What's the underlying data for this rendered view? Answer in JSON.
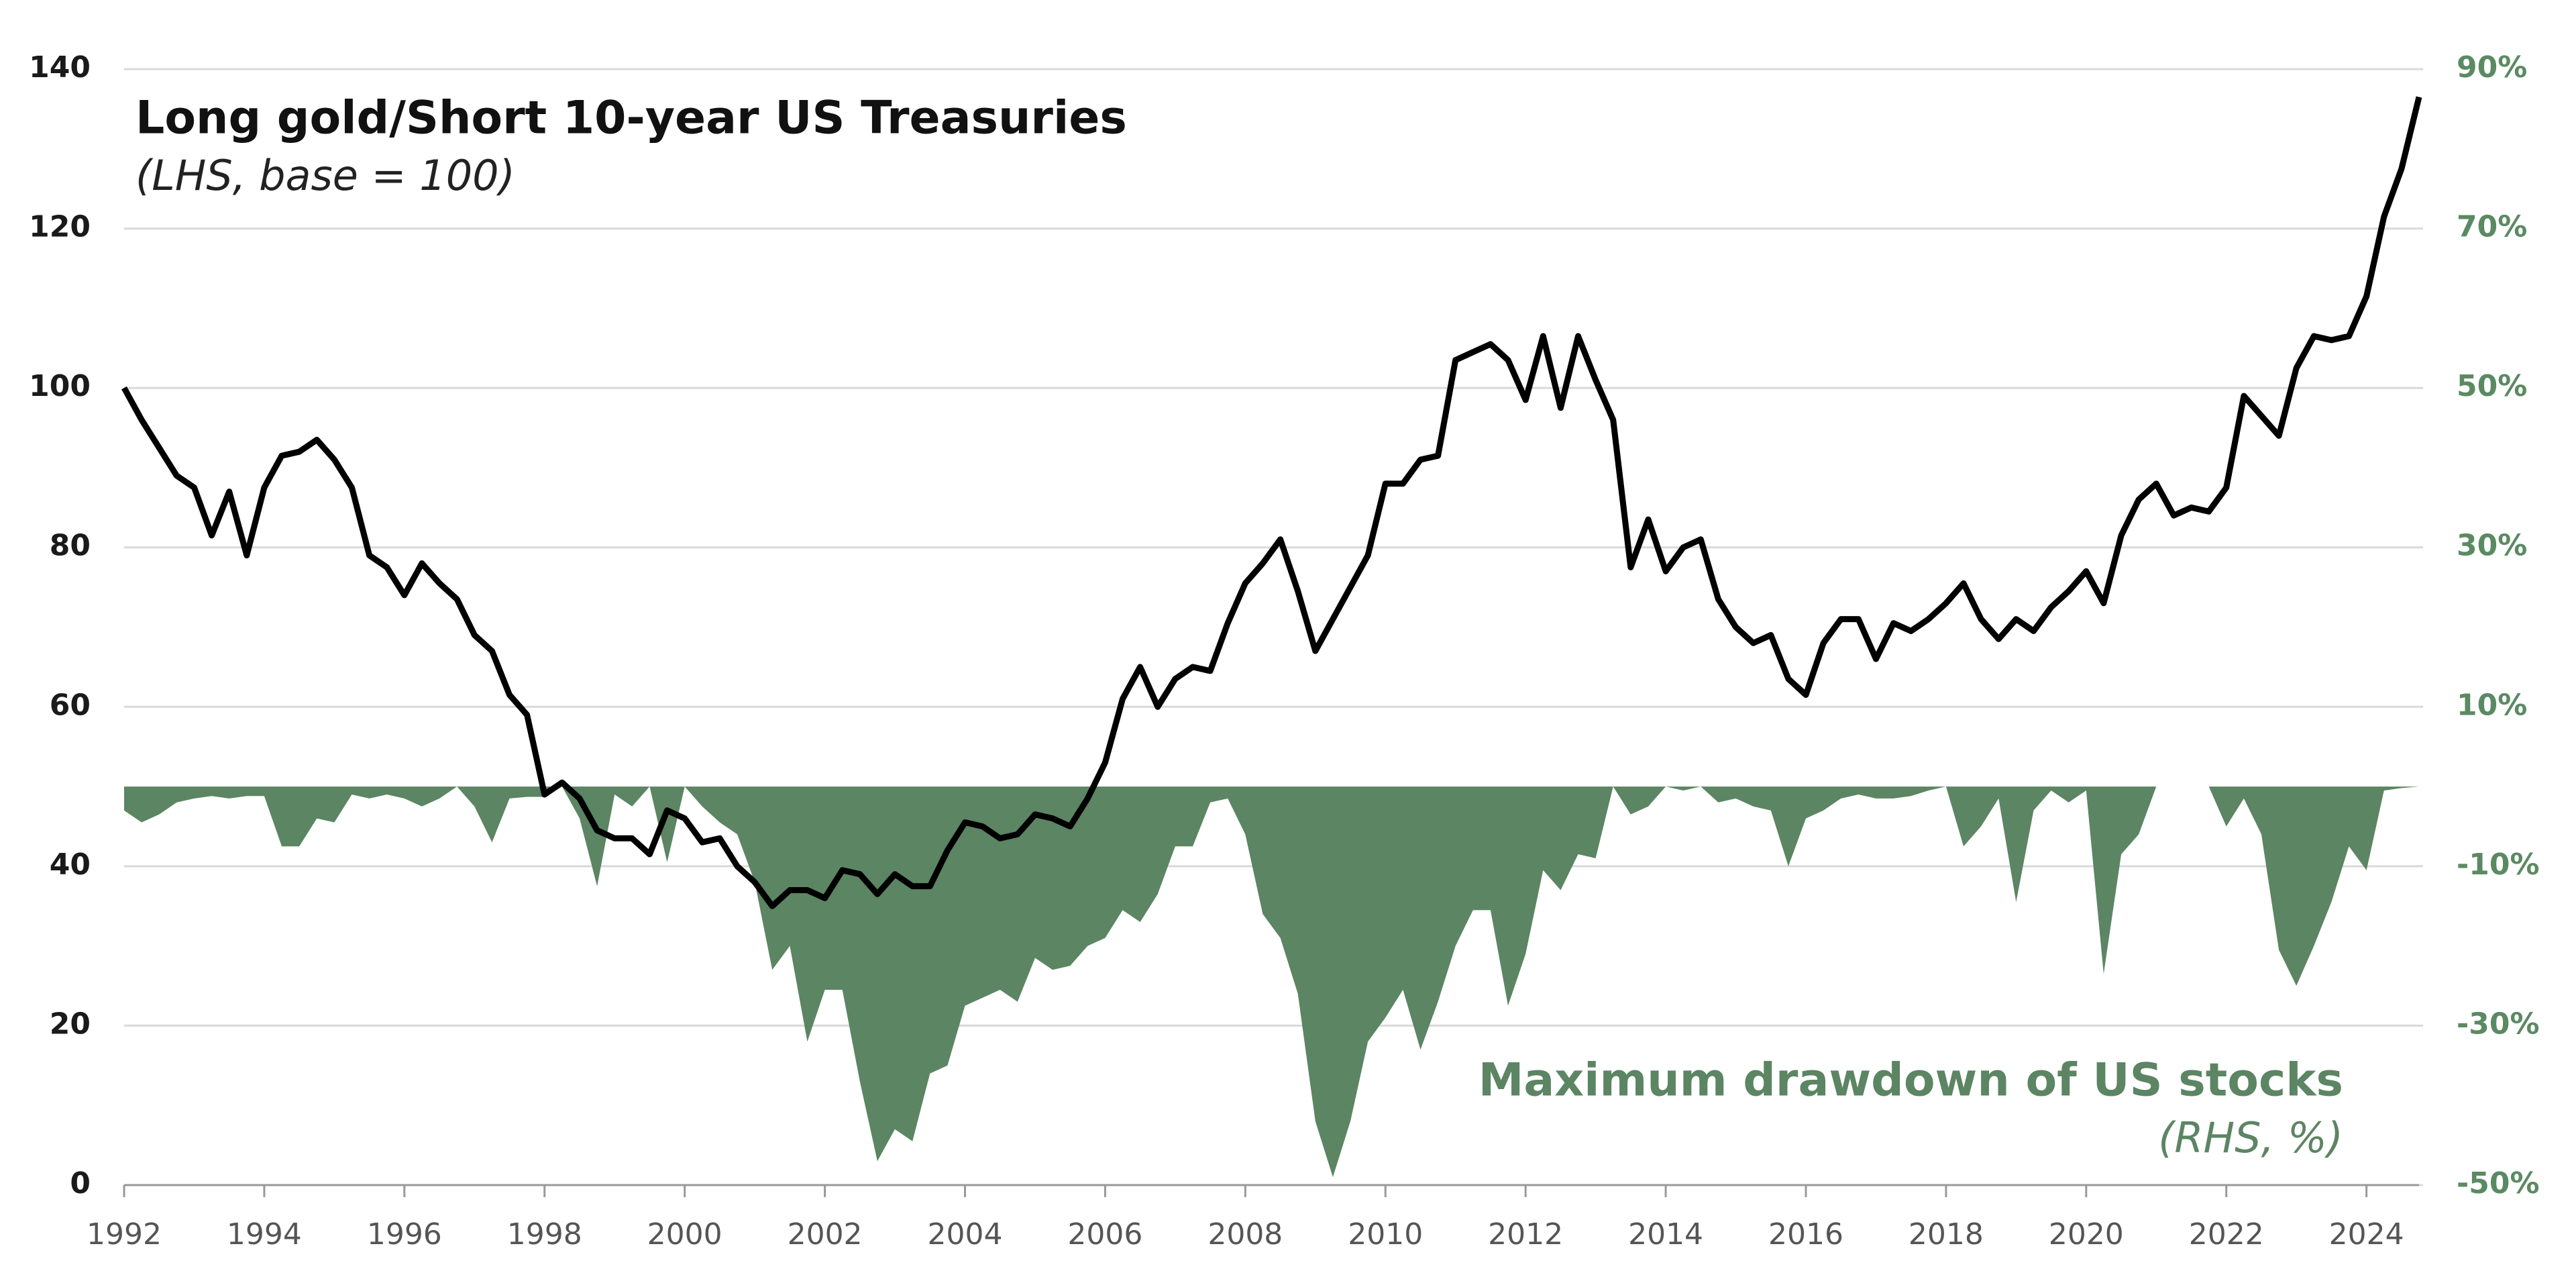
{
  "chart_data": {
    "type": "line-area",
    "title": "Long gold/Short 10-year US Treasuries",
    "subtitle": "(LHS, base = 100)",
    "annotation": "Maximum drawdown of US stocks",
    "annotation_subtitle": "(RHS, %)",
    "x": [
      1992,
      1992.25,
      1992.5,
      1992.75,
      1993,
      1993.25,
      1993.5,
      1993.75,
      1994,
      1994.25,
      1994.5,
      1994.75,
      1995,
      1995.25,
      1995.5,
      1995.75,
      1996,
      1996.25,
      1996.5,
      1996.75,
      1997,
      1997.25,
      1997.5,
      1997.75,
      1998,
      1998.25,
      1998.5,
      1998.75,
      1999,
      1999.25,
      1999.5,
      1999.75,
      2000,
      2000.25,
      2000.5,
      2000.75,
      2001,
      2001.25,
      2001.5,
      2001.75,
      2002,
      2002.25,
      2002.5,
      2002.75,
      2003,
      2003.25,
      2003.5,
      2003.75,
      2004,
      2004.25,
      2004.5,
      2004.75,
      2005,
      2005.25,
      2005.5,
      2005.75,
      2006,
      2006.25,
      2006.5,
      2006.75,
      2007,
      2007.25,
      2007.5,
      2007.75,
      2008,
      2008.25,
      2008.5,
      2008.75,
      2009,
      2009.25,
      2009.5,
      2009.75,
      2010,
      2010.25,
      2010.5,
      2010.75,
      2011,
      2011.25,
      2011.5,
      2011.75,
      2012,
      2012.25,
      2012.5,
      2012.75,
      2013,
      2013.25,
      2013.5,
      2013.75,
      2014,
      2014.25,
      2014.5,
      2014.75,
      2015,
      2015.25,
      2015.5,
      2015.75,
      2016,
      2016.25,
      2016.5,
      2016.75,
      2017,
      2017.25,
      2017.5,
      2017.75,
      2018,
      2018.25,
      2018.5,
      2018.75,
      2019,
      2019.25,
      2019.5,
      2019.75,
      2020,
      2020.25,
      2020.5,
      2020.75,
      2021,
      2021.25,
      2021.5,
      2021.75,
      2022,
      2022.25,
      2022.5,
      2022.75,
      2023,
      2023.25,
      2023.5,
      2023.75,
      2024,
      2024.25,
      2024.5,
      2024.75
    ],
    "series": [
      {
        "name": "Long gold/Short 10-year US Treasuries",
        "color": "#000000",
        "kind": "line",
        "axis": "y",
        "values": [
          100,
          96,
          92.5,
          89,
          87.5,
          81.5,
          87,
          79,
          87.5,
          91.5,
          92,
          93.5,
          91,
          87.5,
          79,
          77.5,
          74,
          78,
          75.5,
          73.5,
          69,
          67,
          61.5,
          59,
          49,
          50.5,
          48.5,
          44.5,
          43.5,
          43.5,
          41.5,
          47,
          46,
          43,
          43.5,
          40,
          38,
          35,
          37,
          37,
          36,
          39.5,
          39,
          36.5,
          39,
          37.5,
          37.5,
          42,
          45.5,
          45,
          43.5,
          44,
          46.5,
          46,
          45,
          48.5,
          53,
          61,
          65,
          60,
          63.5,
          65,
          64.5,
          70.5,
          75.5,
          78,
          81,
          74.5,
          67,
          71,
          75,
          79,
          88,
          88,
          91,
          91.5,
          103.5,
          104.5,
          105.5,
          103.5,
          98.5,
          106.5,
          97.5,
          106.5,
          101,
          96,
          77.5,
          83.5,
          77,
          80,
          81,
          73.5,
          70,
          68,
          69,
          63.5,
          61.5,
          68,
          71,
          71,
          66,
          70.5,
          69.5,
          71,
          73,
          75.5,
          71,
          68.5,
          71,
          69.5,
          72.5,
          74.5,
          77,
          73,
          81.5,
          86,
          88,
          84,
          85,
          84.5,
          87.5,
          99,
          96.5,
          94,
          102.5,
          106.5,
          106,
          106.5,
          111.5,
          121.5,
          127.5,
          136.5
        ]
      },
      {
        "name": "Maximum drawdown of US stocks",
        "color": "#5c8563",
        "kind": "area",
        "axis": "y2",
        "values": [
          -3,
          -4.5,
          -3.5,
          -2,
          -1.5,
          -1.2,
          -1.5,
          -1.2,
          -1.2,
          -7.5,
          -7.5,
          -4,
          -4.5,
          -1,
          -1.5,
          -1,
          -1.5,
          -2.5,
          -1.5,
          0,
          -2.5,
          -7,
          -1.5,
          -1.3,
          -1.3,
          0,
          -4,
          -12.5,
          -1,
          -2.5,
          0,
          -9.5,
          0,
          -2.5,
          -4.5,
          -6,
          -12,
          -23,
          -20,
          -32,
          -25.5,
          -25.5,
          -37,
          -47,
          -43,
          -44.5,
          -36,
          -35,
          -27.5,
          -26.5,
          -25.5,
          -27,
          -21.5,
          -23,
          -22.5,
          -20,
          -19,
          -15.5,
          -17,
          -13.5,
          -7.5,
          -7.5,
          -2,
          -1.5,
          -6,
          -16,
          -19,
          -26,
          -42,
          -49,
          -42,
          -32,
          -29,
          -25.5,
          -33,
          -27,
          -20,
          -15.5,
          -15.5,
          -27.5,
          -21,
          -10.5,
          -13,
          -8.5,
          -9,
          0,
          -3.5,
          -2.5,
          0,
          -0.5,
          0,
          -2,
          -1.5,
          -2.5,
          -3,
          -10,
          -4,
          -3,
          -1.5,
          -1,
          -1.5,
          -1.5,
          -1.2,
          -0.5,
          0,
          -7.5,
          -5,
          -1.5,
          -14.5,
          -3,
          -0.5,
          -2,
          -0.5,
          -23.5,
          -8.5,
          -6,
          0,
          0,
          0,
          0,
          -5,
          -1.5,
          -6,
          -20.5,
          -25,
          -20,
          -14.5,
          -7.5,
          -10.5,
          -0.5,
          -0.2,
          0
        ]
      }
    ],
    "xlim": [
      1992,
      2024.75
    ],
    "xticks": [
      1992,
      1994,
      1996,
      1998,
      2000,
      2002,
      2004,
      2006,
      2008,
      2010,
      2012,
      2014,
      2016,
      2018,
      2020,
      2022,
      2024
    ],
    "ylim": [
      0,
      140
    ],
    "yticks": [
      0,
      20,
      40,
      60,
      80,
      100,
      120,
      140
    ],
    "y2lim": [
      -50,
      90
    ],
    "y2ticks": [
      {
        "value": -50,
        "label": "-50%"
      },
      {
        "value": -30,
        "label": "-30%"
      },
      {
        "value": -10,
        "label": "-10%"
      },
      {
        "value": 10,
        "label": "10%"
      },
      {
        "value": 30,
        "label": "30%"
      },
      {
        "value": 50,
        "label": "50%"
      },
      {
        "value": 70,
        "label": "70%"
      },
      {
        "value": 90,
        "label": "90%"
      }
    ],
    "grid": true
  }
}
